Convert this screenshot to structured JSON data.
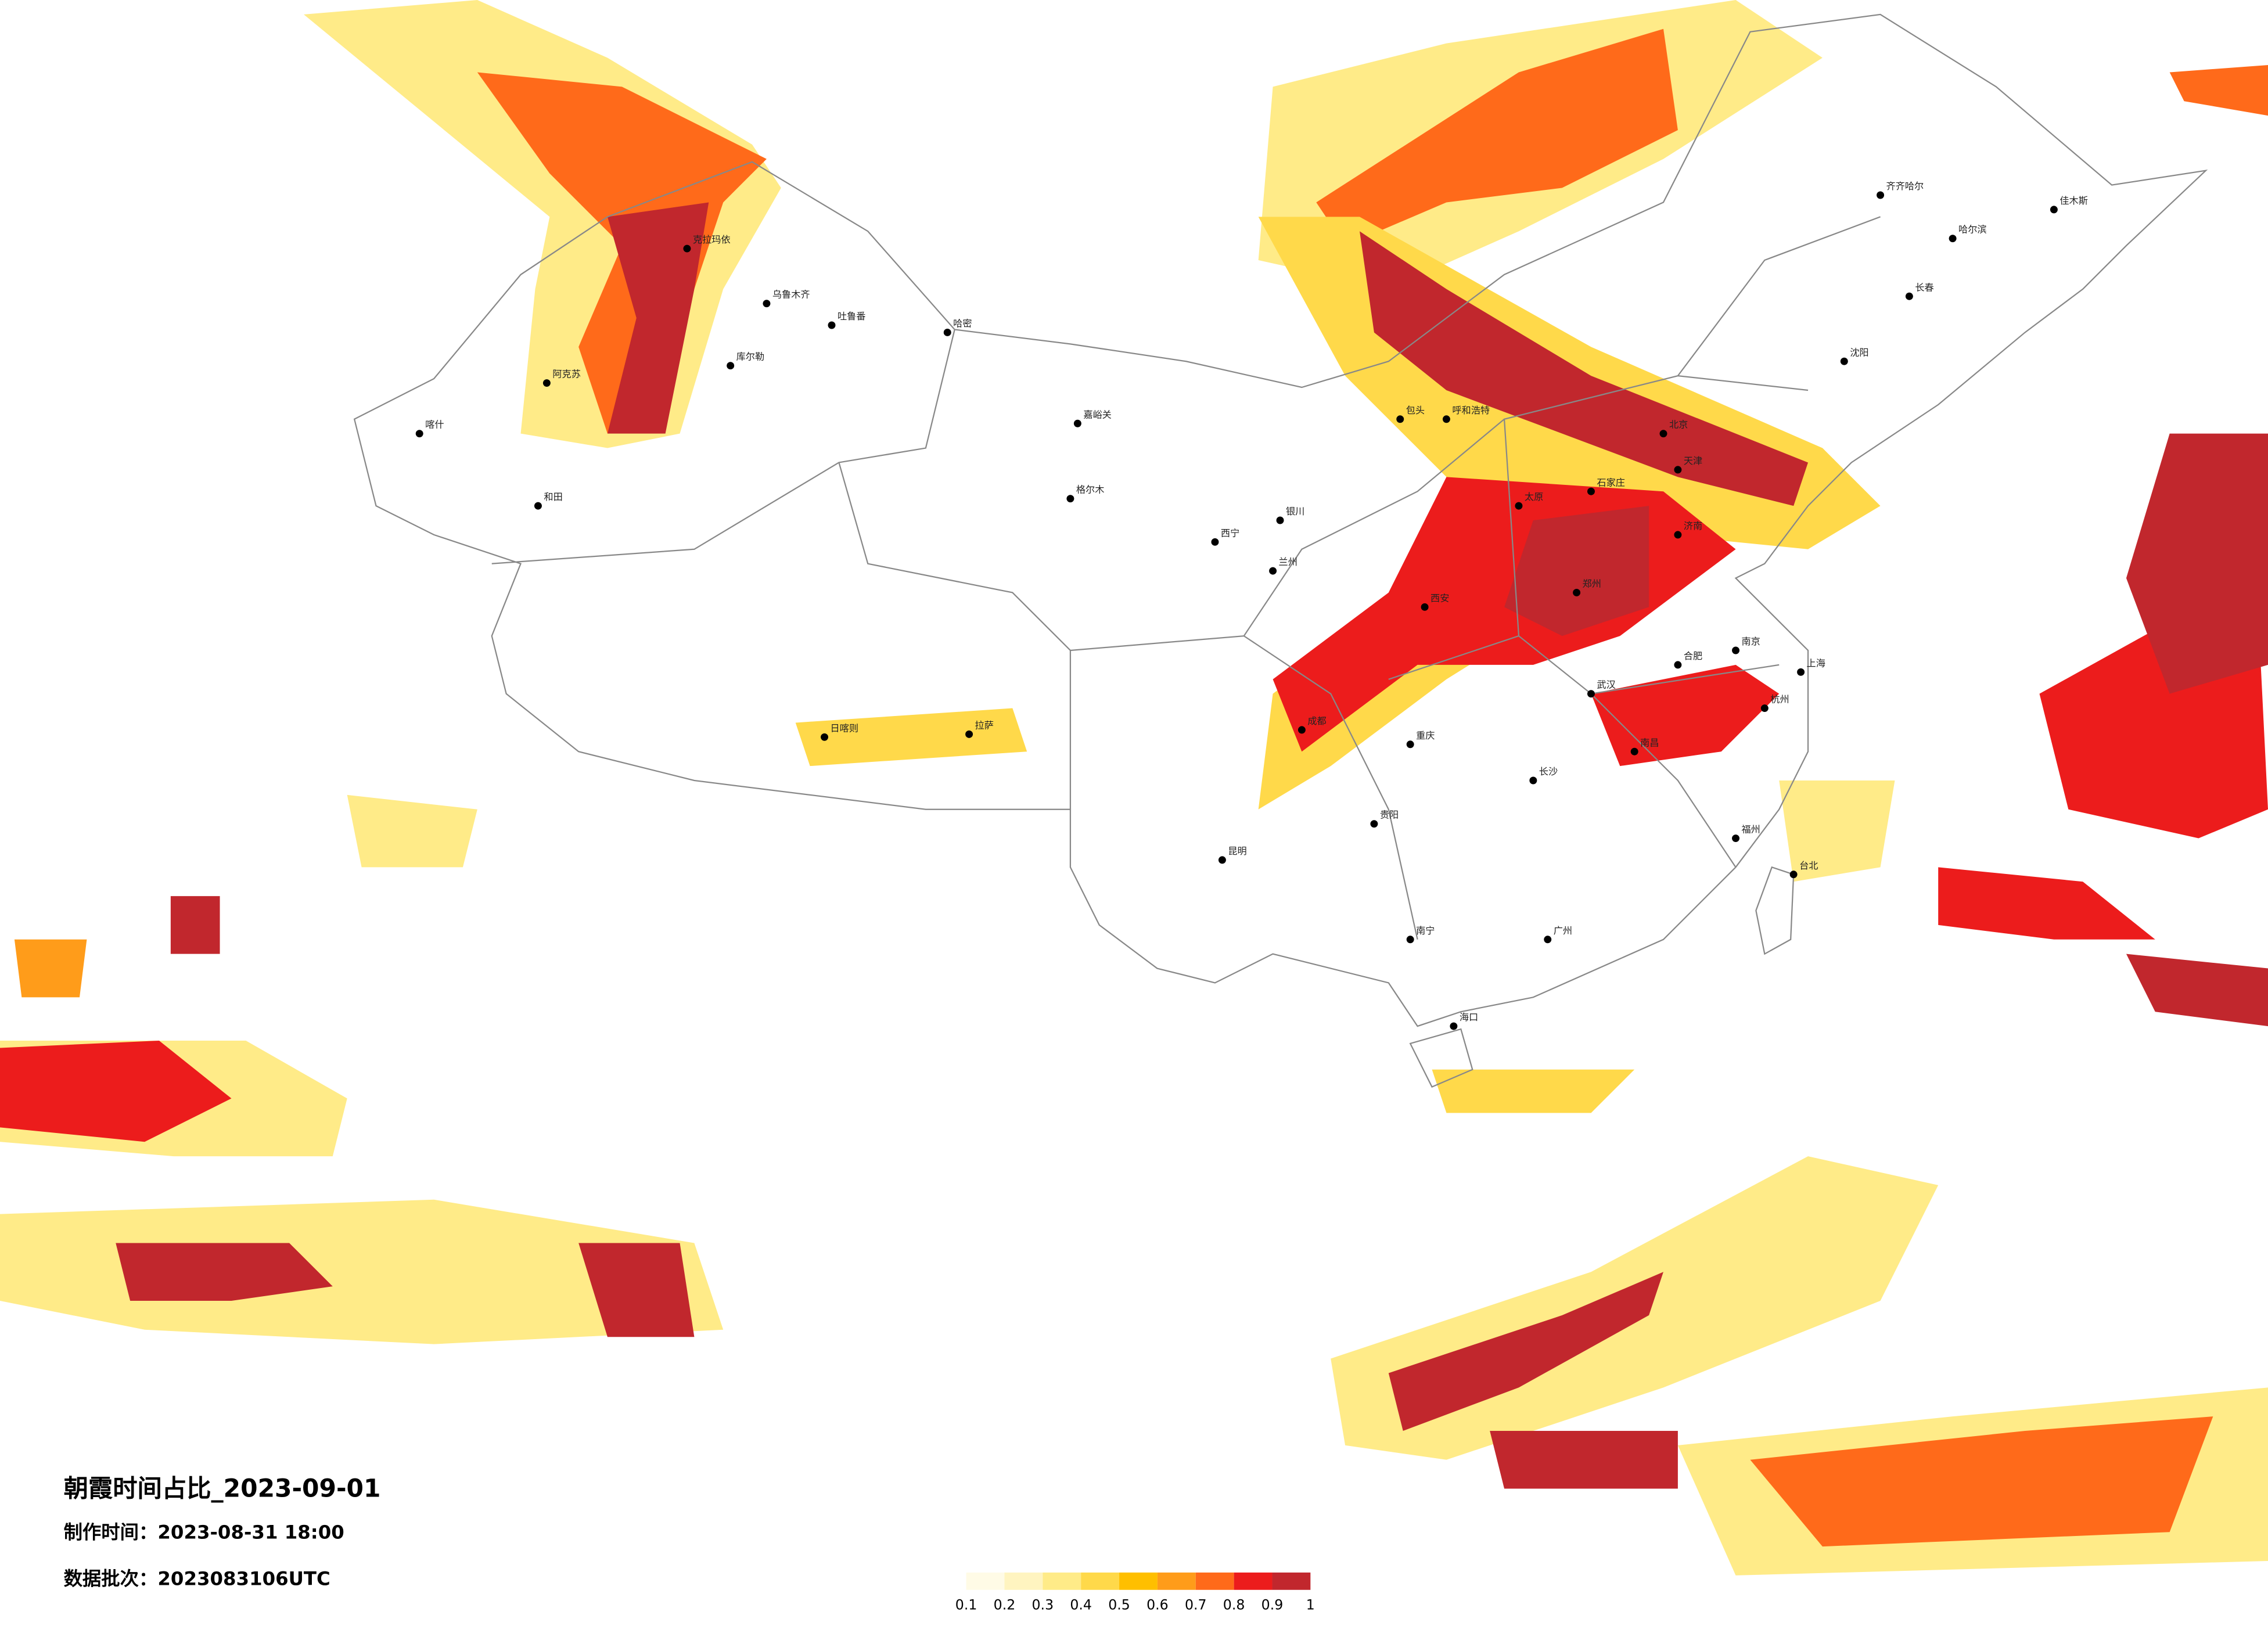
{
  "map": {
    "title": "朝霞时间占比_2023-09-01",
    "made_time": "制作时间：2023-08-31 18:00",
    "batch": "数据批次：2023083106UTC",
    "legend": {
      "ticks": [
        0.1,
        0.2,
        0.3,
        0.4,
        0.5,
        0.6,
        0.7,
        0.8,
        0.9,
        1
      ],
      "colors": [
        "#fffbe6",
        "#fff4c0",
        "#ffeb88",
        "#ffd94a",
        "#ffbf00",
        "#ff9c1a",
        "#ff6a1a",
        "#ec1c1c",
        "#c1272d"
      ]
    },
    "cities": [
      "乌鲁木齐",
      "克拉玛依",
      "吐鲁番",
      "喀什",
      "和田",
      "阿克苏",
      "库尔勒",
      "哈密",
      "嘉峪关",
      "格尔木",
      "西宁",
      "兰州",
      "银川",
      "呼和浩特",
      "包头",
      "北京",
      "天津",
      "石家庄",
      "太原",
      "济南",
      "郑州",
      "西安",
      "成都",
      "重庆",
      "贵阳",
      "昆明",
      "南宁",
      "广州",
      "长沙",
      "武汉",
      "南昌",
      "合肥",
      "南京",
      "上海",
      "杭州",
      "福州",
      "台北",
      "海口",
      "沈阳",
      "长春",
      "哈尔滨",
      "拉萨",
      "日喀则",
      "齐齐哈尔",
      "佳木斯"
    ]
  }
}
